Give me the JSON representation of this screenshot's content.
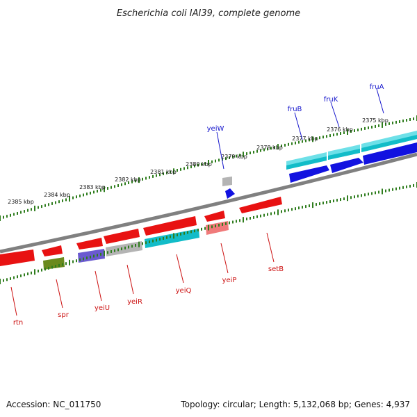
{
  "header": {
    "title": "Escherichia coli IAI39, complete genome"
  },
  "footer": {
    "accession": "Accession: NC_011750",
    "summary": "Topology: circular; Length: 5,132,068 bp; Genes: 4,937"
  },
  "colors": {
    "backbone": "#808080",
    "tick": "#2f7d1e",
    "label_forward": "#1515cc",
    "label_reverse": "#cc1010",
    "cds_red": "#e81212",
    "cds_blue": "#1212e0",
    "cds_cyan": "#12bcc8",
    "cds_grey": "#b4b4b4",
    "cds_olive": "#6a8a1e",
    "cds_purple": "#6a5ad0",
    "cds_pink": "#f07a7a"
  },
  "scale": {
    "tick_labels": [
      "2375 kbp",
      "2376 kbp",
      "2377 kbp",
      "2378 kbp",
      "2379 kbp",
      "2380 kbp",
      "2381 kbp",
      "2382 kbp",
      "2383 kbp",
      "2384 kbp",
      "2385 kbp"
    ]
  },
  "genes": {
    "forward": [
      {
        "name": "fruA",
        "color": "cds_blue"
      },
      {
        "name": "fruK",
        "color": "cds_blue"
      },
      {
        "name": "fruB",
        "color": "cds_blue"
      },
      {
        "name": "yeiW",
        "color": "cds_blue"
      }
    ],
    "reverse": [
      {
        "name": "setB",
        "color": "cds_red"
      },
      {
        "name": "yeiP",
        "color": "cds_red"
      },
      {
        "name": "yeiQ",
        "color": "cds_red"
      },
      {
        "name": "yeiR",
        "color": "cds_red"
      },
      {
        "name": "yeiU",
        "color": "cds_red"
      },
      {
        "name": "spr",
        "color": "cds_red"
      },
      {
        "name": "rtn",
        "color": "cds_red"
      }
    ]
  }
}
